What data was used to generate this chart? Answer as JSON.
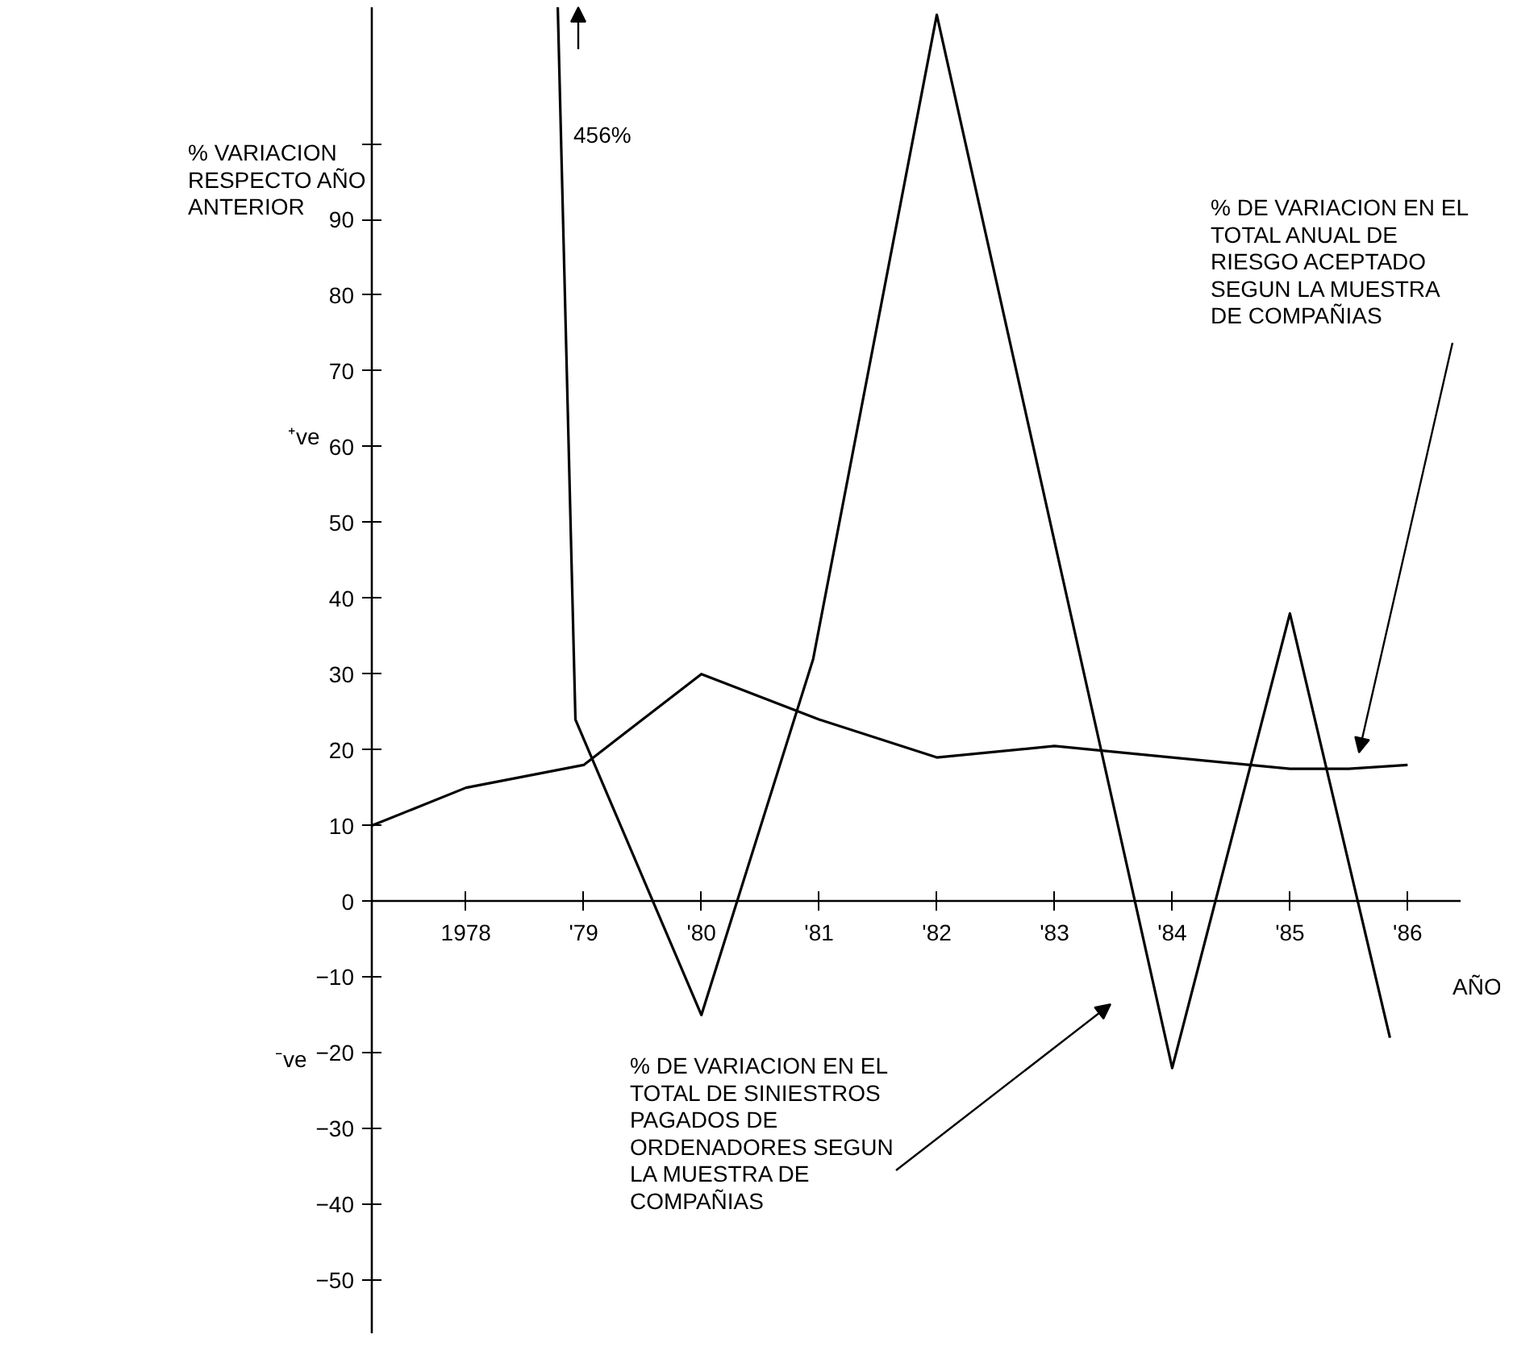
{
  "chart_data": {
    "type": "line",
    "ylabel": "% VARIACION\nRESPECTO AÑO\nANTERIOR",
    "xlabel": "AÑO",
    "xlim": [
      1977.2,
      1986.45
    ],
    "ylim": [
      -57,
      118
    ],
    "xticks": [
      {
        "value": 1978,
        "label": "1978"
      },
      {
        "value": 1979,
        "label": "'79"
      },
      {
        "value": 1980,
        "label": "'80"
      },
      {
        "value": 1981,
        "label": "'81"
      },
      {
        "value": 1982,
        "label": "'82"
      },
      {
        "value": 1983,
        "label": "'83"
      },
      {
        "value": 1984,
        "label": "'84"
      },
      {
        "value": 1985,
        "label": "'85"
      },
      {
        "value": 1986,
        "label": "'86"
      }
    ],
    "yticks": [
      {
        "value": -50,
        "label": "−50"
      },
      {
        "value": -40,
        "label": "−40"
      },
      {
        "value": -30,
        "label": "−30"
      },
      {
        "value": -20,
        "label": "−20"
      },
      {
        "value": -10,
        "label": "−10"
      },
      0,
      10,
      20,
      30,
      40,
      50,
      60,
      70,
      80,
      90,
      {
        "value": 100,
        "label": null
      }
    ],
    "series": [
      {
        "color": "#000000",
        "x": [
          1977.2,
          1978,
          1979,
          1980,
          1981,
          1982,
          1983,
          1984,
          1985,
          1985.5,
          1986
        ],
        "values": [
          10,
          15,
          18,
          30,
          24,
          19,
          20.5,
          19,
          17.5,
          17.5,
          18
        ]
      },
      {
        "color": "#000000",
        "x": [
          1978.78,
          1978.93,
          1980,
          1980.95,
          1982,
          1984,
          1985,
          1985.85
        ],
        "values": [
          118,
          24,
          -15,
          32,
          117,
          -22,
          38,
          -18
        ]
      }
    ],
    "annotations": [
      "456%",
      "% DE VARIACION EN EL\nTOTAL ANUAL DE\nRIESGO ACEPTADO\nSEGUN LA MUESTRA\nDE COMPAÑIAS",
      "% DE VARIACION EN EL\nTOTAL DE SINIESTROS\nPAGADOS DE\nORDENADORES SEGUN\nLA MUESTRA DE\nCOMPAÑIAS",
      "⁺ve",
      "⁻ve"
    ],
    "grid": false
  }
}
